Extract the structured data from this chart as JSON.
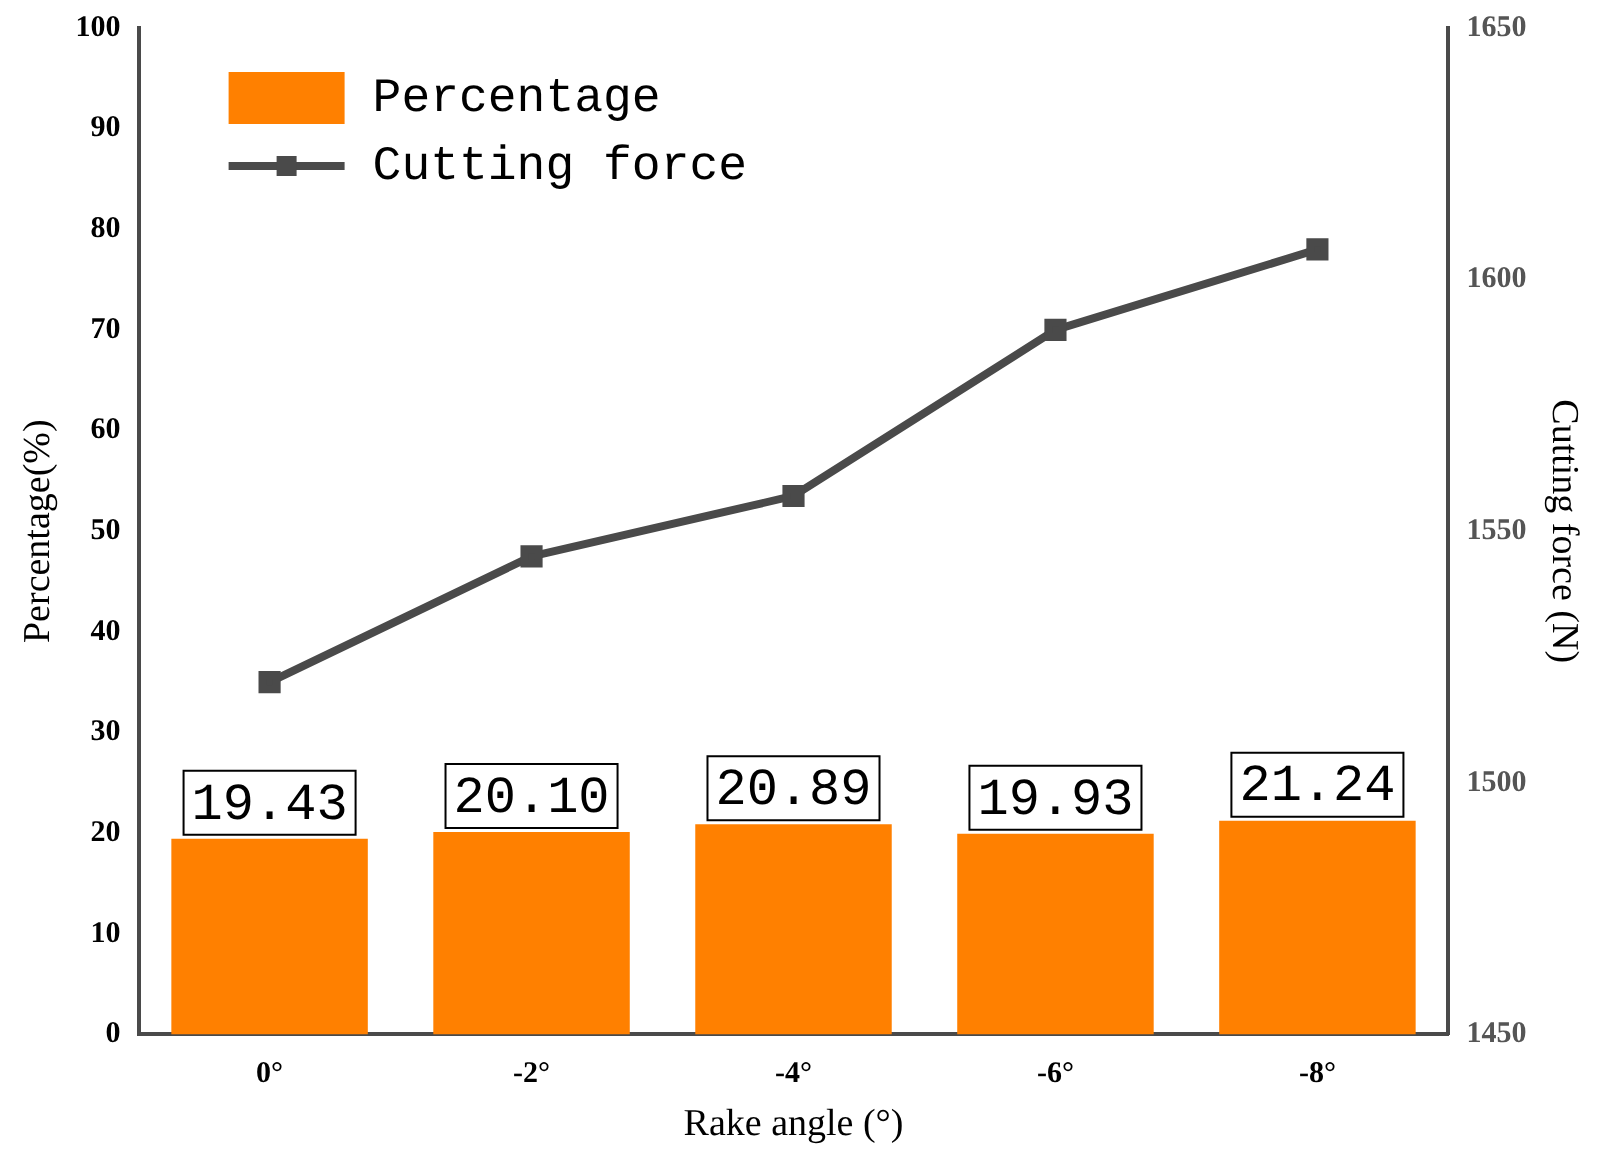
{
  "chart_data": {
    "type": "bar",
    "xlabel": "Rake angle (°)",
    "ylabel": "Percentage(%)",
    "y2label": "Cutting force (N)",
    "categories": [
      "0°",
      "-2°",
      "-4°",
      "-6°",
      "-8°"
    ],
    "series": [
      {
        "name": "Percentage",
        "color": "#ff8000",
        "values": [
          19.43,
          20.1,
          20.89,
          19.93,
          21.24
        ],
        "value_labels": [
          "19.43",
          "20.10",
          "20.89",
          "19.93",
          "21.24"
        ]
      },
      {
        "name": "Cutting force",
        "type": "line",
        "axis": "y2",
        "color": "#4a4a4a",
        "marker": "square",
        "values": [
          1520,
          1545,
          1557,
          1590,
          1606
        ]
      }
    ],
    "ylim": [
      0,
      100
    ],
    "yticks": [
      0,
      10,
      20,
      30,
      40,
      50,
      60,
      70,
      80,
      90,
      100
    ],
    "y2lim": [
      1450,
      1650
    ],
    "y2ticks": [
      1450,
      1500,
      1550,
      1600,
      1650
    ],
    "grid": false,
    "legend": "top left"
  }
}
